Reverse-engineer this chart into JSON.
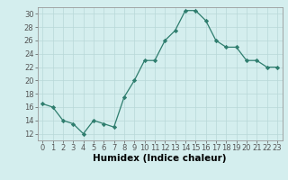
{
  "x": [
    0,
    1,
    2,
    3,
    4,
    5,
    6,
    7,
    8,
    9,
    10,
    11,
    12,
    13,
    14,
    15,
    16,
    17,
    18,
    19,
    20,
    21,
    22,
    23
  ],
  "y": [
    16.5,
    16.0,
    14.0,
    13.5,
    12.0,
    14.0,
    13.5,
    13.0,
    17.5,
    20.0,
    23.0,
    23.0,
    26.0,
    27.5,
    30.5,
    30.5,
    29.0,
    26.0,
    25.0,
    25.0,
    23.0,
    23.0,
    22.0,
    22.0
  ],
  "xlabel": "Humidex (Indice chaleur)",
  "ylim": [
    11,
    31
  ],
  "xlim": [
    -0.5,
    23.5
  ],
  "yticks": [
    12,
    14,
    16,
    18,
    20,
    22,
    24,
    26,
    28,
    30
  ],
  "xticks": [
    0,
    1,
    2,
    3,
    4,
    5,
    6,
    7,
    8,
    9,
    10,
    11,
    12,
    13,
    14,
    15,
    16,
    17,
    18,
    19,
    20,
    21,
    22,
    23
  ],
  "line_color": "#2e7d6e",
  "marker": "D",
  "marker_size": 2.2,
  "bg_color": "#d4eeee",
  "grid_color": "#b8d8d8",
  "tick_fontsize": 6.0,
  "xlabel_fontsize": 7.5,
  "linewidth": 0.9
}
